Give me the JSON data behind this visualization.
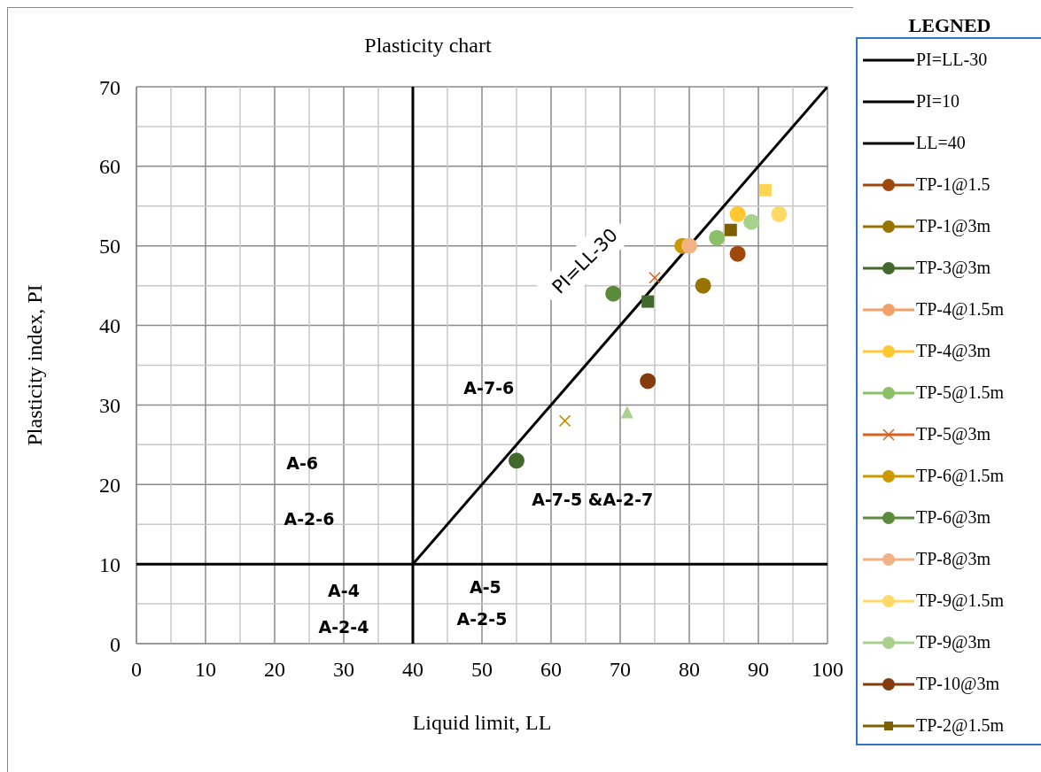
{
  "chart_data": {
    "type": "scatter",
    "title": "Plasticity chart",
    "xlabel": "Liquid limit, LL",
    "ylabel": "Plasticity index, PI",
    "legend_title": "LEGNED",
    "legend": "right",
    "grid": true,
    "xlim": [
      0,
      100
    ],
    "xticks": [
      0,
      10,
      20,
      30,
      40,
      50,
      60,
      70,
      80,
      90,
      100
    ],
    "ylim": [
      0,
      70
    ],
    "yticks": [
      0,
      10,
      20,
      30,
      40,
      50,
      60,
      70
    ],
    "series": [
      {
        "name": "PI=LL-30",
        "type": "line",
        "color": "#000000",
        "marker": "none",
        "x": [
          40,
          100
        ],
        "values": [
          10,
          70
        ]
      },
      {
        "name": "PI=10",
        "type": "line",
        "color": "#000000",
        "marker": "none",
        "x": [
          0,
          100
        ],
        "values": [
          10,
          10
        ]
      },
      {
        "name": "LL=40",
        "type": "line",
        "color": "#000000",
        "marker": "none",
        "x": [
          40,
          40
        ],
        "values": [
          0,
          70
        ]
      },
      {
        "name": "TP-1@1.5",
        "color": "#9e480e",
        "marker": "circle",
        "x": [
          87
        ],
        "values": [
          49
        ]
      },
      {
        "name": "TP-1@3m",
        "color": "#997300",
        "marker": "circle",
        "x": [
          82
        ],
        "values": [
          45
        ]
      },
      {
        "name": "TP-3@3m",
        "color": "#43682b",
        "marker": "circle",
        "x": [
          55
        ],
        "values": [
          23
        ]
      },
      {
        "name": "TP-4@1.5m",
        "color": "#f4a06a",
        "marker": "circle"
      },
      {
        "name": "TP-4@3m",
        "color": "#ffc830",
        "marker": "circle",
        "x": [
          87
        ],
        "values": [
          54
        ]
      },
      {
        "name": "TP-5@1.5m",
        "color": "#8cc068",
        "marker": "circle",
        "x": [
          84
        ],
        "values": [
          51
        ]
      },
      {
        "name": "TP-5@3m",
        "color": "#d86020",
        "marker": "cross",
        "x": [
          75
        ],
        "values": [
          46
        ]
      },
      {
        "name": "TP-6@1.5m",
        "color": "#cc9900",
        "marker": "circle",
        "x": [
          79
        ],
        "values": [
          50
        ]
      },
      {
        "name": "TP-6@3m",
        "color": "#5a8a3a",
        "marker": "circle",
        "x": [
          69
        ],
        "values": [
          44
        ]
      },
      {
        "name": "TP-8@3m",
        "color": "#f4b184",
        "marker": "circle",
        "x": [
          80
        ],
        "values": [
          50
        ]
      },
      {
        "name": "TP-9@1.5m",
        "color": "#ffd966",
        "marker": "circle",
        "x": [
          93
        ],
        "values": [
          54
        ]
      },
      {
        "name": "TP-9@3m",
        "color": "#a9d18e",
        "marker": "circle",
        "x": [
          89
        ],
        "values": [
          53
        ]
      },
      {
        "name": "TP-10@3m",
        "color": "#843c0c",
        "marker": "circle",
        "x": [
          74
        ],
        "values": [
          33
        ]
      },
      {
        "name": "TP-2@1.5m",
        "color": "#7f6000",
        "marker": "square",
        "x": [
          86
        ],
        "values": [
          52
        ]
      },
      {
        "color": "#ffd54f",
        "marker": "square",
        "x": [
          91
        ],
        "values": [
          57
        ]
      },
      {
        "color": "#43682b",
        "marker": "square",
        "x": [
          74
        ],
        "values": [
          43
        ]
      },
      {
        "color": "#a9d18e",
        "marker": "triangle",
        "x": [
          71
        ],
        "values": [
          29
        ]
      },
      {
        "color": "#bf9000",
        "marker": "cross",
        "x": [
          62
        ],
        "values": [
          28
        ]
      }
    ],
    "annotations": [
      "PI=LL-30",
      "A-7-6",
      "A-6",
      "A-2-6",
      "A-7-5 &A-2-7",
      "A-4",
      "A-2-4",
      "A-5",
      "A-2-5"
    ]
  }
}
